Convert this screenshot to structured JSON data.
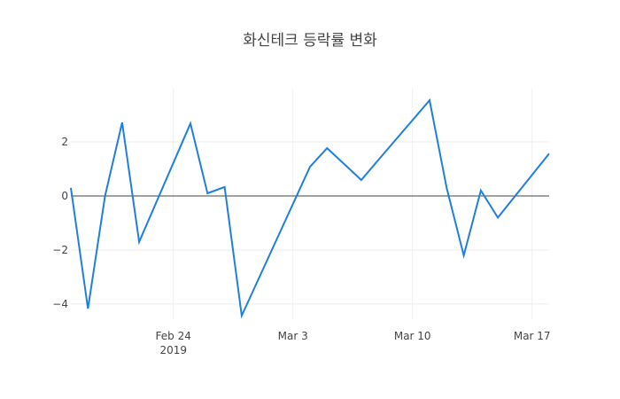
{
  "title": "화신테크 등락률 변화",
  "colors": {
    "line": "#1f7fe0",
    "grid": "#eeeeee",
    "zeroline": "#444444",
    "text": "#444444",
    "background": "#ffffff"
  },
  "x_axis": {
    "ticks": [
      {
        "label": "Feb 24",
        "sublabel": "2019",
        "date": "2019-02-24"
      },
      {
        "label": "Mar 3",
        "sublabel": "",
        "date": "2019-03-03"
      },
      {
        "label": "Mar 10",
        "sublabel": "",
        "date": "2019-03-10"
      },
      {
        "label": "Mar 17",
        "sublabel": "",
        "date": "2019-03-17"
      }
    ]
  },
  "y_axis": {
    "ticks": [
      {
        "label": "2",
        "value": 2
      },
      {
        "label": "0",
        "value": 0
      },
      {
        "label": "−2",
        "value": -2
      },
      {
        "label": "−4",
        "value": -4
      }
    ]
  },
  "chart_data": {
    "type": "line",
    "title": "화신테크 등락률 변화",
    "xlabel": "",
    "ylabel": "",
    "xlim": [
      "2019-02-18",
      "2019-03-18"
    ],
    "ylim": [
      -4.56,
      3.97
    ],
    "grid": true,
    "legend": "none",
    "x": [
      "2019-02-18",
      "2019-02-19",
      "2019-02-20",
      "2019-02-21",
      "2019-02-22",
      "2019-02-25",
      "2019-02-26",
      "2019-02-27",
      "2019-02-28",
      "2019-03-04",
      "2019-03-05",
      "2019-03-06",
      "2019-03-07",
      "2019-03-08",
      "2019-03-11",
      "2019-03-12",
      "2019-03-13",
      "2019-03-14",
      "2019-03-15",
      "2019-03-18"
    ],
    "series": [
      {
        "name": "등락률",
        "values": [
          0.3,
          -4.17,
          0.0,
          2.72,
          -1.7,
          2.68,
          0.1,
          0.33,
          -4.43,
          1.08,
          1.77,
          1.18,
          0.59,
          1.33,
          3.54,
          0.3,
          -2.2,
          0.2,
          -0.8,
          1.57
        ]
      }
    ]
  }
}
